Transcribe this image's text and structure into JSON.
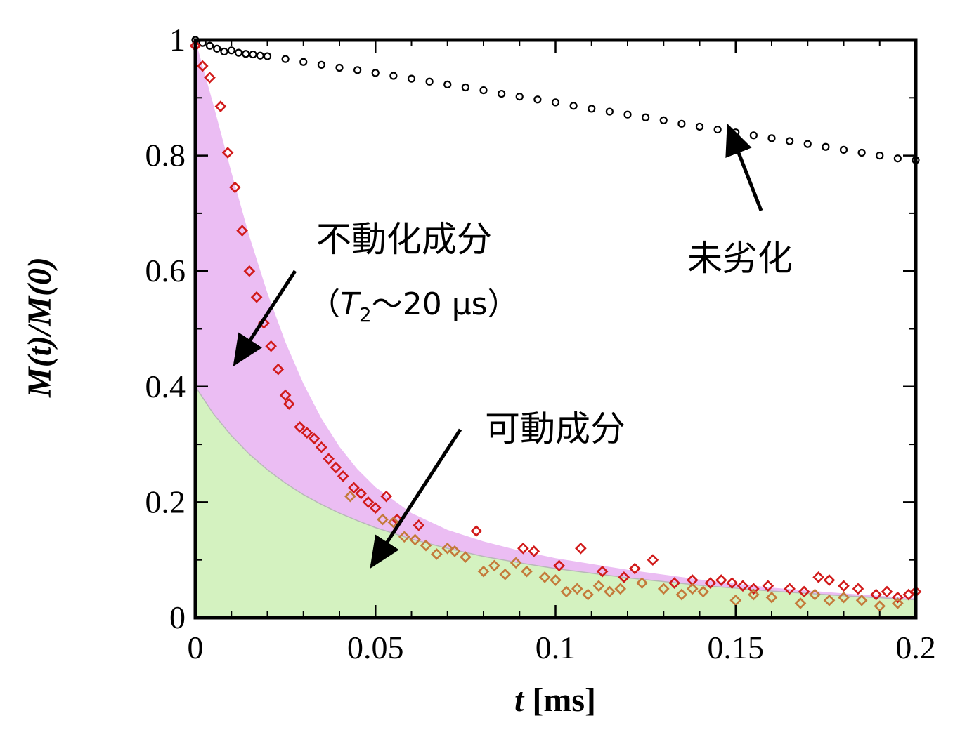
{
  "chart_data": {
    "type": "scatter",
    "xlabel": {
      "var": "t",
      "unit": " [ms]"
    },
    "ylabel": {
      "full": "M(t)/M(0)"
    },
    "xlim": [
      0,
      0.2
    ],
    "ylim": [
      0,
      1
    ],
    "x_ticks": [
      {
        "value": 0,
        "label": "0"
      },
      {
        "value": 0.05,
        "label": "0.05"
      },
      {
        "value": 0.1,
        "label": "0.1"
      },
      {
        "value": 0.15,
        "label": "0.15"
      },
      {
        "value": 0.2,
        "label": "0.2"
      }
    ],
    "y_ticks": [
      {
        "value": 0,
        "label": "0"
      },
      {
        "value": 0.2,
        "label": "0.2"
      },
      {
        "value": 0.4,
        "label": "0.4"
      },
      {
        "value": 0.6,
        "label": "0.6"
      },
      {
        "value": 0.8,
        "label": "0.8"
      },
      {
        "value": 1,
        "label": "1"
      }
    ],
    "grid": false,
    "series": [
      {
        "marker": "circle-open",
        "color": "#000000",
        "x": [
          0,
          0.002,
          0.004,
          0.006,
          0.008,
          0.01,
          0.012,
          0.014,
          0.016,
          0.018,
          0.02,
          0.025,
          0.03,
          0.035,
          0.04,
          0.045,
          0.05,
          0.055,
          0.06,
          0.065,
          0.07,
          0.075,
          0.08,
          0.085,
          0.09,
          0.095,
          0.1,
          0.105,
          0.11,
          0.115,
          0.12,
          0.125,
          0.13,
          0.135,
          0.14,
          0.145,
          0.15,
          0.155,
          0.16,
          0.165,
          0.17,
          0.175,
          0.18,
          0.185,
          0.19,
          0.195,
          0.2
        ],
        "y": [
          1.0,
          0.995,
          0.99,
          0.985,
          0.98,
          0.982,
          0.978,
          0.976,
          0.975,
          0.973,
          0.972,
          0.967,
          0.962,
          0.957,
          0.952,
          0.948,
          0.943,
          0.938,
          0.933,
          0.928,
          0.923,
          0.918,
          0.913,
          0.907,
          0.902,
          0.897,
          0.892,
          0.886,
          0.881,
          0.876,
          0.871,
          0.866,
          0.861,
          0.855,
          0.85,
          0.845,
          0.84,
          0.835,
          0.83,
          0.825,
          0.82,
          0.815,
          0.81,
          0.805,
          0.8,
          0.795,
          0.792
        ]
      },
      {
        "marker": "diamond-open",
        "color": "#d11a1a",
        "x": [
          0.0,
          0.002,
          0.004,
          0.007,
          0.009,
          0.011,
          0.013,
          0.015,
          0.017,
          0.019,
          0.021,
          0.023,
          0.025,
          0.026,
          0.029,
          0.031,
          0.033,
          0.035,
          0.037,
          0.039,
          0.041,
          0.044,
          0.046,
          0.048,
          0.05,
          0.053,
          0.056,
          0.062,
          0.078,
          0.091,
          0.094,
          0.101,
          0.107,
          0.113,
          0.119,
          0.122,
          0.127,
          0.133,
          0.138,
          0.143,
          0.146,
          0.149,
          0.152,
          0.155,
          0.159,
          0.165,
          0.169,
          0.173,
          0.176,
          0.18,
          0.184,
          0.189,
          0.192,
          0.195,
          0.198,
          0.2
        ],
        "y": [
          0.99,
          0.955,
          0.935,
          0.885,
          0.805,
          0.745,
          0.67,
          0.6,
          0.555,
          0.51,
          0.47,
          0.43,
          0.385,
          0.37,
          0.33,
          0.32,
          0.31,
          0.295,
          0.275,
          0.26,
          0.245,
          0.225,
          0.215,
          0.2,
          0.19,
          0.21,
          0.17,
          0.16,
          0.15,
          0.12,
          0.115,
          0.09,
          0.12,
          0.08,
          0.07,
          0.085,
          0.1,
          0.06,
          0.065,
          0.06,
          0.065,
          0.06,
          0.055,
          0.05,
          0.055,
          0.05,
          0.045,
          0.07,
          0.065,
          0.055,
          0.05,
          0.04,
          0.045,
          0.035,
          0.04,
          0.045
        ]
      },
      {
        "marker": "diamond-open",
        "color": "#c47a3a",
        "x": [
          0.043,
          0.052,
          0.055,
          0.058,
          0.061,
          0.064,
          0.067,
          0.07,
          0.072,
          0.075,
          0.08,
          0.083,
          0.086,
          0.089,
          0.092,
          0.097,
          0.1,
          0.103,
          0.106,
          0.109,
          0.112,
          0.115,
          0.118,
          0.124,
          0.13,
          0.135,
          0.138,
          0.141,
          0.15,
          0.155,
          0.16,
          0.168,
          0.172,
          0.176,
          0.18,
          0.185,
          0.19,
          0.195
        ],
        "y": [
          0.21,
          0.17,
          0.165,
          0.14,
          0.135,
          0.125,
          0.11,
          0.12,
          0.115,
          0.105,
          0.08,
          0.09,
          0.075,
          0.095,
          0.08,
          0.07,
          0.065,
          0.045,
          0.05,
          0.04,
          0.055,
          0.045,
          0.05,
          0.06,
          0.05,
          0.04,
          0.05,
          0.045,
          0.03,
          0.04,
          0.035,
          0.025,
          0.04,
          0.03,
          0.035,
          0.03,
          0.02,
          0.025
        ]
      }
    ],
    "areas": [
      {
        "color": "#ebbdf3",
        "upper": "total",
        "lower": "mobile",
        "x": [
          0,
          0.005,
          0.01,
          0.015,
          0.02,
          0.025,
          0.03,
          0.035,
          0.04,
          0.045,
          0.05,
          0.06,
          0.07,
          0.08,
          0.09,
          0.1,
          0.12,
          0.14,
          0.16,
          0.18,
          0.2
        ],
        "y": [
          1.0,
          0.888,
          0.771,
          0.66,
          0.562,
          0.477,
          0.405,
          0.345,
          0.296,
          0.257,
          0.226,
          0.181,
          0.152,
          0.132,
          0.116,
          0.103,
          0.083,
          0.066,
          0.052,
          0.042,
          0.034
        ]
      },
      {
        "color": "#d4f2c0",
        "upper": "mobile",
        "lower": "zero",
        "x": [
          0,
          0.005,
          0.01,
          0.015,
          0.02,
          0.025,
          0.03,
          0.035,
          0.04,
          0.045,
          0.05,
          0.06,
          0.07,
          0.08,
          0.09,
          0.1,
          0.12,
          0.14,
          0.16,
          0.18,
          0.2
        ],
        "y": [
          0.4,
          0.353,
          0.315,
          0.283,
          0.256,
          0.233,
          0.213,
          0.196,
          0.181,
          0.168,
          0.156,
          0.136,
          0.12,
          0.106,
          0.095,
          0.085,
          0.069,
          0.056,
          0.046,
          0.038,
          0.031
        ]
      }
    ],
    "annotations": [
      {
        "id": "immobile",
        "line1": "不動化成分",
        "line2_open": "（",
        "line2_T": "T",
        "line2_sub": "2",
        "line2_rest": "〜20 µs）",
        "arrow_to": [
          0.011,
          0.44
        ]
      },
      {
        "id": "mobile",
        "text": "可動成分",
        "arrow_to": [
          0.049,
          0.09
        ]
      },
      {
        "id": "undegraded",
        "text": "未劣化",
        "arrow_to": [
          0.148,
          0.85
        ]
      }
    ]
  }
}
